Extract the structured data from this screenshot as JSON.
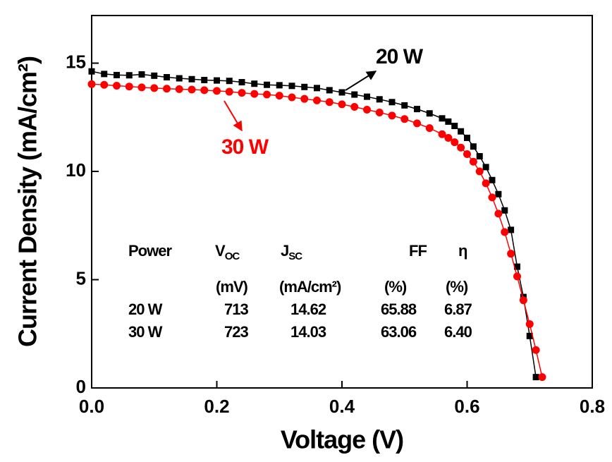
{
  "chart_data": {
    "type": "line",
    "xlabel": "Voltage (V)",
    "ylabel": "Current Density (mA/cm²)",
    "xlim": [
      0,
      0.8
    ],
    "ylim": [
      0,
      17.2
    ],
    "xticks": [
      {
        "value": 0,
        "label": "0.0"
      },
      0.2,
      0.4,
      0.6,
      0.8
    ],
    "yticks": [
      0,
      5,
      10,
      15
    ],
    "series": [
      {
        "name": "20 W",
        "color": "#000000",
        "marker": "square",
        "x": [
          0,
          0.02,
          0.04,
          0.06,
          0.08,
          0.1,
          0.12,
          0.14,
          0.16,
          0.18,
          0.2,
          0.22,
          0.24,
          0.26,
          0.28,
          0.3,
          0.32,
          0.34,
          0.36,
          0.38,
          0.4,
          0.42,
          0.44,
          0.46,
          0.48,
          0.5,
          0.52,
          0.54,
          0.56,
          0.57,
          0.58,
          0.59,
          0.6,
          0.61,
          0.62,
          0.63,
          0.64,
          0.65,
          0.66,
          0.67,
          0.68,
          0.69,
          0.7,
          0.71
        ],
        "values": [
          14.62,
          14.5,
          14.45,
          14.44,
          14.48,
          14.42,
          14.35,
          14.3,
          14.26,
          14.22,
          14.2,
          14.18,
          14.12,
          14.05,
          14.0,
          13.98,
          13.95,
          13.9,
          13.85,
          13.75,
          13.65,
          13.55,
          13.45,
          13.33,
          13.2,
          13.05,
          12.88,
          12.68,
          12.45,
          12.3,
          12.1,
          11.85,
          11.55,
          11.15,
          10.7,
          10.2,
          9.6,
          8.95,
          8.2,
          7.3,
          5.6,
          4.2,
          2.4,
          0.5
        ]
      },
      {
        "name": "30 W",
        "color": "#ff0000",
        "marker": "circle",
        "x": [
          0,
          0.02,
          0.04,
          0.06,
          0.08,
          0.1,
          0.12,
          0.14,
          0.16,
          0.18,
          0.2,
          0.22,
          0.24,
          0.26,
          0.28,
          0.3,
          0.32,
          0.34,
          0.36,
          0.38,
          0.4,
          0.42,
          0.44,
          0.46,
          0.48,
          0.5,
          0.52,
          0.54,
          0.56,
          0.57,
          0.58,
          0.59,
          0.6,
          0.61,
          0.62,
          0.63,
          0.64,
          0.65,
          0.66,
          0.67,
          0.68,
          0.69,
          0.7,
          0.71,
          0.72
        ],
        "values": [
          14.03,
          14.0,
          13.96,
          13.92,
          13.88,
          13.85,
          13.82,
          13.8,
          13.78,
          13.75,
          13.72,
          13.68,
          13.63,
          13.58,
          13.55,
          13.5,
          13.42,
          13.35,
          13.28,
          13.2,
          13.1,
          12.98,
          12.85,
          12.72,
          12.58,
          12.42,
          12.22,
          12.0,
          11.72,
          11.55,
          11.35,
          11.1,
          10.8,
          10.45,
          10.0,
          9.45,
          8.8,
          8.05,
          7.2,
          6.2,
          5.15,
          4.05,
          2.95,
          1.75,
          0.5
        ]
      }
    ],
    "table": {
      "header": [
        "Power",
        {
          "text": "V",
          "sub": "OC"
        },
        {
          "text": "J",
          "sub": "SC"
        },
        "FF",
        "η"
      ],
      "units": [
        "(mV)",
        "(mA/cm²)",
        "(%)",
        "(%)"
      ],
      "rows": [
        [
          "20 W",
          "713",
          "14.62",
          "65.88",
          "6.87"
        ],
        [
          "30 W",
          "723",
          "14.03",
          "63.06",
          "6.40"
        ]
      ]
    }
  }
}
